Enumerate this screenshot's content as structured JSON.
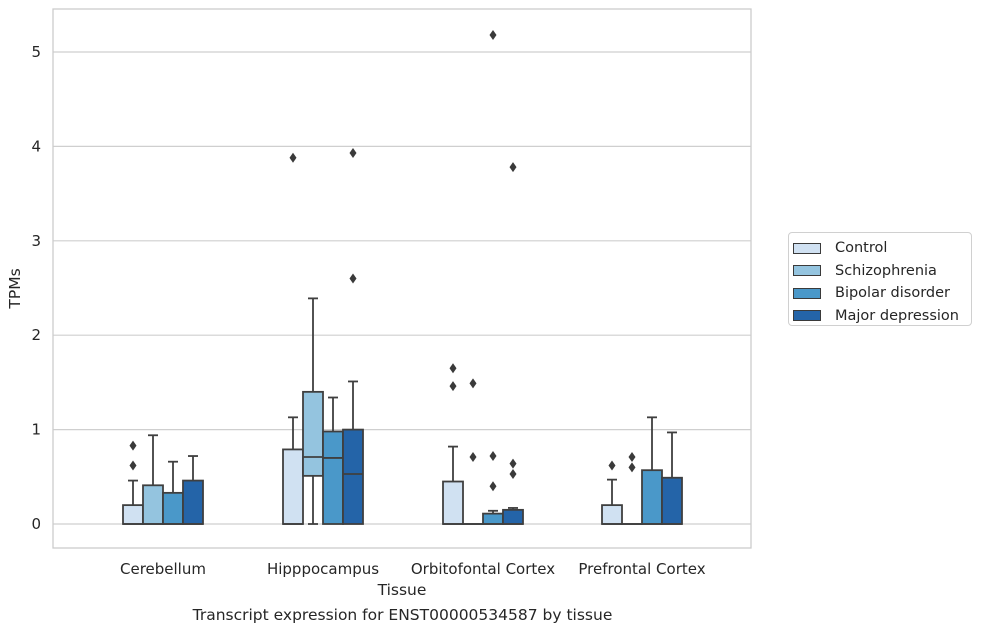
{
  "chart_data": {
    "type": "box",
    "caption": "Transcript expression for ENST00000534587 by tissue",
    "xlabel": "Tissue",
    "ylabel": "TPMs",
    "ylim": [
      -0.25,
      5.45
    ],
    "yticks": [
      0,
      1,
      2,
      3,
      4,
      5
    ],
    "categories": [
      "Cerebellum",
      "Hipppocampus",
      "Orbitofontal Cortex",
      "Prefrontal Cortex"
    ],
    "legend_position": "right",
    "grid": "horizontal",
    "series": [
      {
        "name": "Control",
        "color": "#d0e1f2",
        "boxes": [
          {
            "min": 0,
            "q1": 0,
            "median": 0,
            "q3": 0.2,
            "max": 0.46,
            "outliers": [
              0.62,
              0.83
            ]
          },
          {
            "min": 0,
            "q1": 0,
            "median": 0,
            "q3": 0.79,
            "max": 1.13,
            "outliers": [
              3.88
            ]
          },
          {
            "min": 0,
            "q1": 0,
            "median": 0,
            "q3": 0.45,
            "max": 0.82,
            "outliers": [
              1.46,
              1.65
            ]
          },
          {
            "min": 0,
            "q1": 0,
            "median": 0,
            "q3": 0.2,
            "max": 0.47,
            "outliers": [
              0.62
            ]
          }
        ]
      },
      {
        "name": "Schizophrenia",
        "color": "#94c4df",
        "boxes": [
          {
            "min": 0,
            "q1": 0,
            "median": 0,
            "q3": 0.41,
            "max": 0.94,
            "outliers": []
          },
          {
            "min": 0,
            "q1": 0.51,
            "median": 0.71,
            "q3": 1.4,
            "max": 2.39,
            "outliers": []
          },
          {
            "min": 0,
            "q1": 0,
            "median": 0,
            "q3": 0,
            "max": 0,
            "outliers": [
              0.71,
              1.49
            ]
          },
          {
            "min": 0,
            "q1": 0,
            "median": 0,
            "q3": 0,
            "max": 0,
            "outliers": [
              0.6,
              0.71
            ]
          }
        ]
      },
      {
        "name": "Bipolar disorder",
        "color": "#4a98c9",
        "boxes": [
          {
            "min": 0,
            "q1": 0,
            "median": 0,
            "q3": 0.33,
            "max": 0.66,
            "outliers": []
          },
          {
            "min": 0,
            "q1": 0,
            "median": 0.7,
            "q3": 0.98,
            "max": 1.34,
            "outliers": []
          },
          {
            "min": 0,
            "q1": 0,
            "median": 0,
            "q3": 0.11,
            "max": 0.14,
            "outliers": [
              0.4,
              0.72,
              5.18
            ]
          },
          {
            "min": 0,
            "q1": 0,
            "median": 0,
            "q3": 0.57,
            "max": 1.13,
            "outliers": []
          }
        ]
      },
      {
        "name": "Major depression",
        "color": "#2464a8",
        "boxes": [
          {
            "min": 0,
            "q1": 0,
            "median": 0,
            "q3": 0.46,
            "max": 0.72,
            "outliers": []
          },
          {
            "min": 0,
            "q1": 0,
            "median": 0.53,
            "q3": 1.0,
            "max": 1.51,
            "outliers": [
              2.6,
              3.93
            ]
          },
          {
            "min": 0,
            "q1": 0,
            "median": 0,
            "q3": 0.15,
            "max": 0.17,
            "outliers": [
              0.53,
              0.64,
              3.78
            ]
          },
          {
            "min": 0,
            "q1": 0,
            "median": 0,
            "q3": 0.49,
            "max": 0.97,
            "outliers": []
          }
        ]
      }
    ]
  }
}
